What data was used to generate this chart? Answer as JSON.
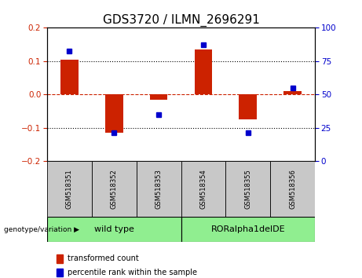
{
  "title": "GDS3720 / ILMN_2696291",
  "samples": [
    "GSM518351",
    "GSM518352",
    "GSM518353",
    "GSM518354",
    "GSM518355",
    "GSM518356"
  ],
  "red_bars": [
    0.105,
    -0.115,
    -0.015,
    0.135,
    -0.075,
    0.01
  ],
  "blue_dots_left": [
    0.13,
    -0.115,
    -0.06,
    0.15,
    -0.115,
    0.02
  ],
  "ylim_left": [
    -0.2,
    0.2
  ],
  "ylim_right": [
    0,
    100
  ],
  "yticks_left": [
    -0.2,
    -0.1,
    0,
    0.1,
    0.2
  ],
  "yticks_right": [
    0,
    25,
    50,
    75,
    100
  ],
  "group_labels": [
    "wild type",
    "RORalpha1delDE"
  ],
  "group_starts": [
    0,
    3
  ],
  "group_sizes": [
    3,
    3
  ],
  "group_colors": [
    "#90EE90",
    "#90EE90"
  ],
  "sample_box_color": "#C8C8C8",
  "bar_color": "#CC2200",
  "dot_color": "#0000CC",
  "zero_line_color": "#CC2200",
  "dot_line_color": "#000000",
  "bg_color": "#FFFFFF",
  "legend_red_label": "transformed count",
  "legend_blue_label": "percentile rank within the sample",
  "title_fontsize": 11,
  "tick_fontsize": 7.5,
  "sample_fontsize": 6,
  "group_fontsize": 8,
  "legend_fontsize": 7
}
